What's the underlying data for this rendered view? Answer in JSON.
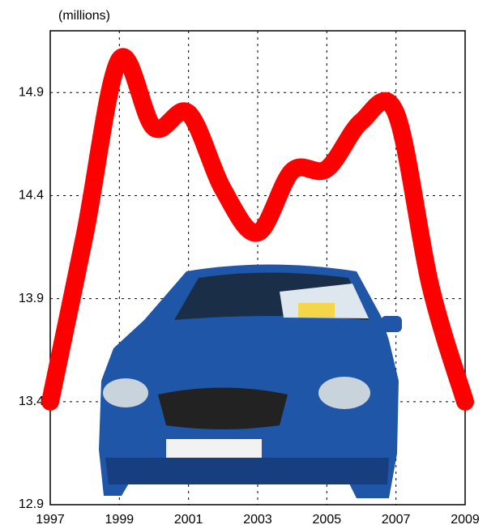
{
  "chart_data": {
    "type": "line",
    "y_axis_label": "(millions)",
    "x": [
      1997,
      1998,
      1999,
      2000,
      2001,
      2002,
      2003,
      2004,
      2005,
      2006,
      2007,
      2008,
      2009
    ],
    "values": [
      13.4,
      14.21,
      15.06,
      14.73,
      14.8,
      14.43,
      14.22,
      14.52,
      14.53,
      14.76,
      14.8,
      13.96,
      13.4
    ],
    "color": "#ff0000",
    "xlim": [
      1997,
      2009
    ],
    "xticks": [
      1997,
      1999,
      2001,
      2003,
      2005,
      2007,
      2009
    ],
    "ylim": [
      12.9,
      15.2
    ],
    "yticks": [
      12.9,
      13.4,
      13.9,
      14.4,
      14.9
    ],
    "grid": true
  }
}
